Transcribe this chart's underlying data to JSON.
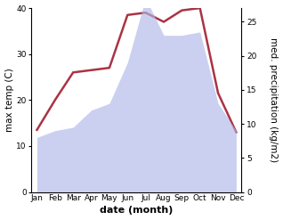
{
  "months": [
    "Jan",
    "Feb",
    "Mar",
    "Apr",
    "May",
    "Jun",
    "Jul",
    "Aug",
    "Sep",
    "Oct",
    "Nov",
    "Dec"
  ],
  "precipitation": [
    8,
    9,
    9.5,
    12,
    13,
    19,
    28.5,
    23,
    23,
    23.5,
    13,
    9
  ],
  "temp_line": [
    13.5,
    20,
    26,
    26.5,
    27,
    38.5,
    39,
    37,
    39.5,
    40,
    21.5,
    13
  ],
  "ylim_left": [
    0,
    40
  ],
  "ylim_right": [
    0,
    27
  ],
  "yticks_left": [
    0,
    10,
    20,
    30,
    40
  ],
  "yticks_right": [
    0,
    5,
    10,
    15,
    20,
    25
  ],
  "fill_color": "#b0b8e8",
  "fill_alpha": 0.65,
  "line_color": "#aa3344",
  "line_width": 1.8,
  "xlabel": "date (month)",
  "ylabel_left": "max temp (C)",
  "ylabel_right": "med. precipitation (kg/m2)",
  "bg_color": "#ffffff",
  "label_fontsize": 7.5,
  "tick_fontsize": 6.5,
  "xlabel_fontsize": 8
}
